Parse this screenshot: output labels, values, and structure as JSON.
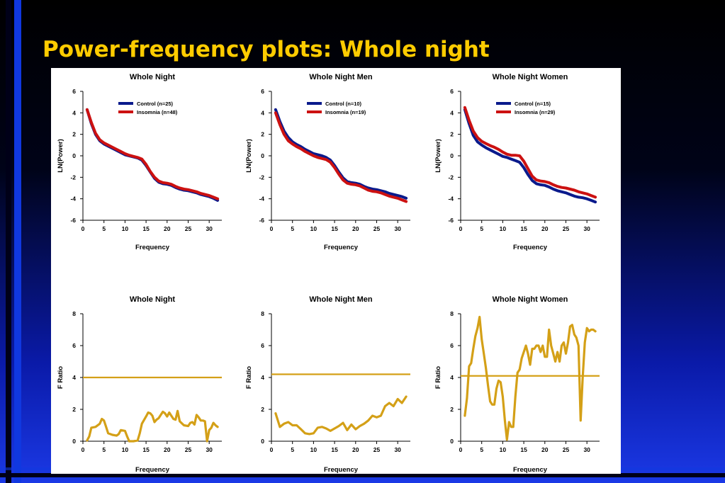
{
  "slide": {
    "title": "Power-frequency plots: Whole night"
  },
  "colors": {
    "control": "#0a1a8c",
    "insomnia": "#cc1111",
    "fratio": "#d4a017"
  },
  "chart_data": [
    {
      "type": "line",
      "title": "Whole Night",
      "xlabel": "Frequency",
      "ylabel": "LN(Power)",
      "xlim": [
        0,
        33
      ],
      "ylim": [
        -6,
        6
      ],
      "xticks": [
        "0",
        "5",
        "10",
        "15",
        "20",
        "25",
        "30"
      ],
      "yticks": [
        "-6",
        "-4",
        "-2",
        "0",
        "2",
        "4",
        "6"
      ],
      "legend_position": "top-center",
      "x": [
        1,
        2,
        3,
        4,
        5,
        6,
        7,
        8,
        9,
        10,
        11,
        12,
        13,
        14,
        15,
        16,
        17,
        18,
        19,
        20,
        21,
        22,
        23,
        24,
        25,
        26,
        27,
        28,
        29,
        30,
        31,
        32
      ],
      "series": [
        {
          "name": "Control (n=25)",
          "color_key": "control",
          "values": [
            4.3,
            3.0,
            2.0,
            1.4,
            1.1,
            0.9,
            0.7,
            0.5,
            0.3,
            0.1,
            0.0,
            -0.1,
            -0.2,
            -0.4,
            -0.9,
            -1.5,
            -2.1,
            -2.45,
            -2.6,
            -2.65,
            -2.75,
            -2.95,
            -3.1,
            -3.2,
            -3.25,
            -3.35,
            -3.45,
            -3.6,
            -3.7,
            -3.8,
            -3.95,
            -4.15
          ]
        },
        {
          "name": "Insomnia (n=48)",
          "color_key": "insomnia",
          "values": [
            4.3,
            3.1,
            2.1,
            1.5,
            1.2,
            1.0,
            0.8,
            0.6,
            0.4,
            0.2,
            0.05,
            -0.05,
            -0.15,
            -0.3,
            -0.8,
            -1.45,
            -2.0,
            -2.35,
            -2.5,
            -2.55,
            -2.65,
            -2.85,
            -3.0,
            -3.1,
            -3.15,
            -3.25,
            -3.35,
            -3.5,
            -3.6,
            -3.7,
            -3.85,
            -4.0
          ]
        }
      ]
    },
    {
      "type": "line",
      "title": "Whole Night Men",
      "xlabel": "Frequency",
      "ylabel": "LN(Power)",
      "xlim": [
        0,
        33
      ],
      "ylim": [
        -6,
        6
      ],
      "xticks": [
        "0",
        "5",
        "10",
        "15",
        "20",
        "25",
        "30"
      ],
      "yticks": [
        "-6",
        "-4",
        "-2",
        "0",
        "2",
        "4",
        "6"
      ],
      "legend_position": "top-center",
      "x": [
        1,
        2,
        3,
        4,
        5,
        6,
        7,
        8,
        9,
        10,
        11,
        12,
        13,
        14,
        15,
        16,
        17,
        18,
        19,
        20,
        21,
        22,
        23,
        24,
        25,
        26,
        27,
        28,
        29,
        30,
        31,
        32
      ],
      "series": [
        {
          "name": "Control (n=10)",
          "color_key": "control",
          "values": [
            4.3,
            3.2,
            2.3,
            1.7,
            1.3,
            1.05,
            0.85,
            0.6,
            0.4,
            0.2,
            0.1,
            0.0,
            -0.15,
            -0.4,
            -0.9,
            -1.5,
            -2.05,
            -2.4,
            -2.5,
            -2.55,
            -2.65,
            -2.85,
            -3.0,
            -3.1,
            -3.15,
            -3.25,
            -3.35,
            -3.5,
            -3.6,
            -3.7,
            -3.8,
            -3.95
          ]
        },
        {
          "name": "Insomnia (n=19)",
          "color_key": "insomnia",
          "values": [
            4.0,
            2.9,
            2.0,
            1.4,
            1.1,
            0.85,
            0.65,
            0.4,
            0.2,
            0.0,
            -0.15,
            -0.25,
            -0.35,
            -0.6,
            -1.1,
            -1.7,
            -2.25,
            -2.55,
            -2.65,
            -2.7,
            -2.8,
            -3.0,
            -3.2,
            -3.3,
            -3.35,
            -3.45,
            -3.6,
            -3.75,
            -3.85,
            -3.95,
            -4.1,
            -4.25
          ]
        }
      ]
    },
    {
      "type": "line",
      "title": "Whole Night Women",
      "xlabel": "Frequency",
      "ylabel": "LN(Power)",
      "xlim": [
        0,
        33
      ],
      "ylim": [
        -6,
        6
      ],
      "xticks": [
        "0",
        "5",
        "10",
        "15",
        "20",
        "25",
        "30"
      ],
      "yticks": [
        "-6",
        "-4",
        "-2",
        "0",
        "2",
        "4",
        "6"
      ],
      "legend_position": "top-center",
      "x": [
        1,
        2,
        3,
        4,
        5,
        6,
        7,
        8,
        9,
        10,
        11,
        12,
        13,
        14,
        15,
        16,
        17,
        18,
        19,
        20,
        21,
        22,
        23,
        24,
        25,
        26,
        27,
        28,
        29,
        30,
        31,
        32
      ],
      "series": [
        {
          "name": "Control (n=15)",
          "color_key": "control",
          "values": [
            4.3,
            3.0,
            1.9,
            1.3,
            1.0,
            0.75,
            0.55,
            0.35,
            0.15,
            -0.05,
            -0.15,
            -0.3,
            -0.45,
            -0.6,
            -1.1,
            -1.75,
            -2.3,
            -2.6,
            -2.7,
            -2.75,
            -2.9,
            -3.1,
            -3.25,
            -3.35,
            -3.45,
            -3.6,
            -3.75,
            -3.85,
            -3.9,
            -4.0,
            -4.15,
            -4.3
          ]
        },
        {
          "name": "Insomnia (n=29)",
          "color_key": "insomnia",
          "values": [
            4.5,
            3.3,
            2.3,
            1.7,
            1.35,
            1.15,
            0.95,
            0.8,
            0.6,
            0.35,
            0.15,
            0.05,
            0.05,
            0.0,
            -0.5,
            -1.2,
            -1.9,
            -2.25,
            -2.35,
            -2.4,
            -2.5,
            -2.7,
            -2.85,
            -2.95,
            -3.0,
            -3.1,
            -3.2,
            -3.35,
            -3.45,
            -3.55,
            -3.7,
            -3.85
          ]
        }
      ]
    },
    {
      "type": "line",
      "title": "Whole Night",
      "xlabel": "Frequency",
      "ylabel": "F Ratio",
      "xlim": [
        0,
        33
      ],
      "ylim": [
        0,
        8
      ],
      "xticks": [
        "0",
        "5",
        "10",
        "15",
        "20",
        "25",
        "30"
      ],
      "yticks": [
        "0",
        "2",
        "4",
        "6",
        "8"
      ],
      "threshold": 4.0,
      "x": [
        1,
        1.5,
        2,
        3,
        4,
        4.5,
        5,
        5.5,
        6,
        7,
        8,
        8.5,
        9,
        10,
        10.5,
        11,
        11.5,
        12,
        13,
        13.5,
        14,
        15,
        15.5,
        16,
        16.5,
        17,
        17.5,
        18,
        19,
        19.5,
        20,
        20.5,
        21,
        21.5,
        22,
        22.5,
        23,
        24,
        25,
        25.5,
        26,
        26.5,
        27,
        27.5,
        28,
        28.5,
        29,
        29.5,
        30,
        30.5,
        31,
        31.5,
        32
      ],
      "series": [
        {
          "name": "",
          "color_key": "fratio",
          "values": [
            0.05,
            0.3,
            0.85,
            0.9,
            1.1,
            1.4,
            1.3,
            0.9,
            0.5,
            0.4,
            0.35,
            0.45,
            0.7,
            0.65,
            0.3,
            0.0,
            0.0,
            0.0,
            0.05,
            0.5,
            1.1,
            1.55,
            1.8,
            1.75,
            1.6,
            1.2,
            1.35,
            1.45,
            1.85,
            1.75,
            1.55,
            1.8,
            1.6,
            1.4,
            1.35,
            1.9,
            1.25,
            1.0,
            0.95,
            1.15,
            1.2,
            1.05,
            1.65,
            1.5,
            1.3,
            1.3,
            1.25,
            0.0,
            0.7,
            0.85,
            1.15,
            1.0,
            0.9
          ]
        }
      ]
    },
    {
      "type": "line",
      "title": "Whole Night Men",
      "xlabel": "Frequency",
      "ylabel": "F Ratio",
      "xlim": [
        0,
        33
      ],
      "ylim": [
        0,
        8
      ],
      "xticks": [
        "0",
        "5",
        "10",
        "15",
        "20",
        "25",
        "30"
      ],
      "yticks": [
        "0",
        "2",
        "4",
        "6",
        "8"
      ],
      "threshold": 4.2,
      "x": [
        1,
        2,
        3,
        4,
        5,
        6,
        7,
        8,
        9,
        10,
        11,
        12,
        13,
        14,
        15,
        16,
        17,
        18,
        19,
        20,
        21,
        22,
        23,
        24,
        25,
        26,
        27,
        28,
        29,
        30,
        31,
        32
      ],
      "series": [
        {
          "name": "",
          "color_key": "fratio",
          "values": [
            1.75,
            0.9,
            1.1,
            1.2,
            1.0,
            1.0,
            0.75,
            0.5,
            0.45,
            0.5,
            0.85,
            0.9,
            0.8,
            0.65,
            0.8,
            0.95,
            1.15,
            0.7,
            1.05,
            0.75,
            0.95,
            1.1,
            1.3,
            1.6,
            1.5,
            1.6,
            2.2,
            2.4,
            2.2,
            2.65,
            2.4,
            2.8
          ]
        }
      ]
    },
    {
      "type": "line",
      "title": "Whole Night Women",
      "xlabel": "Frequency",
      "ylabel": "F Ratio",
      "xlim": [
        0,
        33
      ],
      "ylim": [
        0,
        8
      ],
      "xticks": [
        "0",
        "5",
        "10",
        "15",
        "20",
        "25",
        "30"
      ],
      "yticks": [
        "0",
        "2",
        "4",
        "6",
        "8"
      ],
      "threshold": 4.1,
      "x": [
        1,
        1.5,
        2,
        2.5,
        3,
        3.5,
        4,
        4.5,
        5,
        5.5,
        6,
        6.5,
        7,
        7.5,
        8,
        8.5,
        9,
        9.5,
        10,
        10.5,
        11,
        11.5,
        12,
        12.5,
        13,
        13.5,
        14,
        14.5,
        15,
        15.5,
        16,
        16.5,
        17,
        17.5,
        18,
        18.5,
        19,
        19.5,
        20,
        20.5,
        21,
        21.5,
        22,
        22.5,
        23,
        23.5,
        24,
        24.5,
        25,
        25.5,
        26,
        26.5,
        27,
        27.5,
        28,
        28.5,
        29,
        29.5,
        30,
        30.5,
        31,
        31.5,
        32
      ],
      "series": [
        {
          "name": "",
          "color_key": "fratio",
          "values": [
            1.6,
            2.7,
            4.7,
            4.9,
            5.8,
            6.6,
            7.1,
            7.8,
            6.4,
            5.5,
            4.6,
            3.5,
            2.5,
            2.3,
            2.3,
            3.3,
            3.8,
            3.7,
            2.8,
            1.3,
            0.1,
            1.2,
            0.9,
            0.9,
            2.8,
            4.3,
            4.5,
            5.2,
            5.6,
            6.0,
            5.5,
            4.8,
            5.8,
            5.8,
            6.0,
            6.0,
            5.6,
            6.0,
            5.3,
            5.3,
            7.0,
            6.0,
            5.5,
            5.0,
            5.6,
            5.0,
            6.0,
            6.2,
            5.5,
            6.2,
            7.2,
            7.3,
            6.7,
            6.5,
            6.0,
            1.3,
            4.0,
            6.2,
            7.1,
            6.9,
            7.0,
            7.0,
            6.9
          ]
        }
      ]
    }
  ]
}
